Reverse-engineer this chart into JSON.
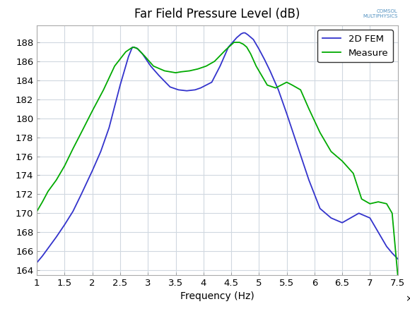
{
  "title": "Far Field Pressure Level (dB)",
  "xlabel": "Frequency (Hz)",
  "xlim": [
    1000000.0,
    7500000.0
  ],
  "ylim": [
    163.5,
    189.8
  ],
  "xticks": [
    1000000.0,
    1500000.0,
    2000000.0,
    2500000.0,
    3000000.0,
    3500000.0,
    4000000.0,
    4500000.0,
    5000000.0,
    5500000.0,
    6000000.0,
    6500000.0,
    7000000.0,
    7500000.0
  ],
  "yticks": [
    164,
    166,
    168,
    170,
    172,
    174,
    176,
    178,
    180,
    182,
    184,
    186,
    188
  ],
  "fem_color": "#3333cc",
  "measure_color": "#00aa00",
  "fem_x": [
    1.0,
    1.1,
    1.2,
    1.35,
    1.5,
    1.65,
    1.8,
    2.0,
    2.15,
    2.3,
    2.5,
    2.65,
    2.72,
    2.8,
    2.9,
    3.05,
    3.2,
    3.4,
    3.55,
    3.7,
    3.85,
    3.95,
    4.05,
    4.15,
    4.3,
    4.45,
    4.6,
    4.68,
    4.72,
    4.75,
    4.8,
    4.9,
    5.0,
    5.1,
    5.2,
    5.35,
    5.5,
    5.7,
    5.9,
    6.1,
    6.3,
    6.5,
    6.65,
    6.8,
    7.0,
    7.1,
    7.2,
    7.3,
    7.4,
    7.5
  ],
  "fem_y": [
    164.8,
    165.5,
    166.3,
    167.5,
    168.8,
    170.2,
    172.0,
    174.5,
    176.5,
    179.0,
    183.5,
    186.5,
    187.5,
    187.4,
    186.8,
    185.5,
    184.5,
    183.3,
    183.0,
    182.9,
    183.0,
    183.2,
    183.5,
    183.8,
    185.5,
    187.5,
    188.5,
    188.9,
    189.0,
    189.0,
    188.8,
    188.3,
    187.3,
    186.2,
    185.0,
    183.0,
    180.5,
    177.0,
    173.5,
    170.5,
    169.5,
    169.0,
    169.5,
    170.0,
    169.5,
    168.5,
    167.5,
    166.5,
    165.8,
    165.2
  ],
  "measure_x": [
    1.0,
    1.1,
    1.2,
    1.35,
    1.5,
    1.65,
    1.8,
    2.0,
    2.2,
    2.4,
    2.6,
    2.7,
    2.75,
    2.82,
    2.95,
    3.1,
    3.3,
    3.5,
    3.6,
    3.75,
    3.9,
    4.05,
    4.2,
    4.4,
    4.55,
    4.65,
    4.72,
    4.78,
    4.85,
    4.95,
    5.05,
    5.15,
    5.3,
    5.5,
    5.6,
    5.75,
    5.9,
    6.1,
    6.3,
    6.5,
    6.7,
    6.85,
    7.0,
    7.15,
    7.3,
    7.4,
    7.5
  ],
  "measure_y": [
    170.2,
    171.2,
    172.3,
    173.5,
    175.0,
    176.8,
    178.5,
    180.8,
    183.0,
    185.5,
    187.0,
    187.4,
    187.5,
    187.3,
    186.5,
    185.5,
    185.0,
    184.8,
    184.9,
    185.0,
    185.2,
    185.5,
    186.0,
    187.2,
    188.0,
    188.0,
    187.8,
    187.5,
    186.8,
    185.5,
    184.5,
    183.5,
    183.2,
    183.8,
    183.5,
    183.0,
    181.0,
    178.5,
    176.5,
    175.5,
    174.2,
    171.5,
    171.0,
    171.2,
    171.0,
    170.0,
    163.5
  ],
  "legend_labels": [
    "2D FEM",
    "Measure"
  ],
  "background_color": "#ffffff",
  "grid_color": "#d0d8e0",
  "title_fontsize": 12,
  "axis_fontsize": 10,
  "tick_fontsize": 9.5,
  "line_width": 1.3
}
